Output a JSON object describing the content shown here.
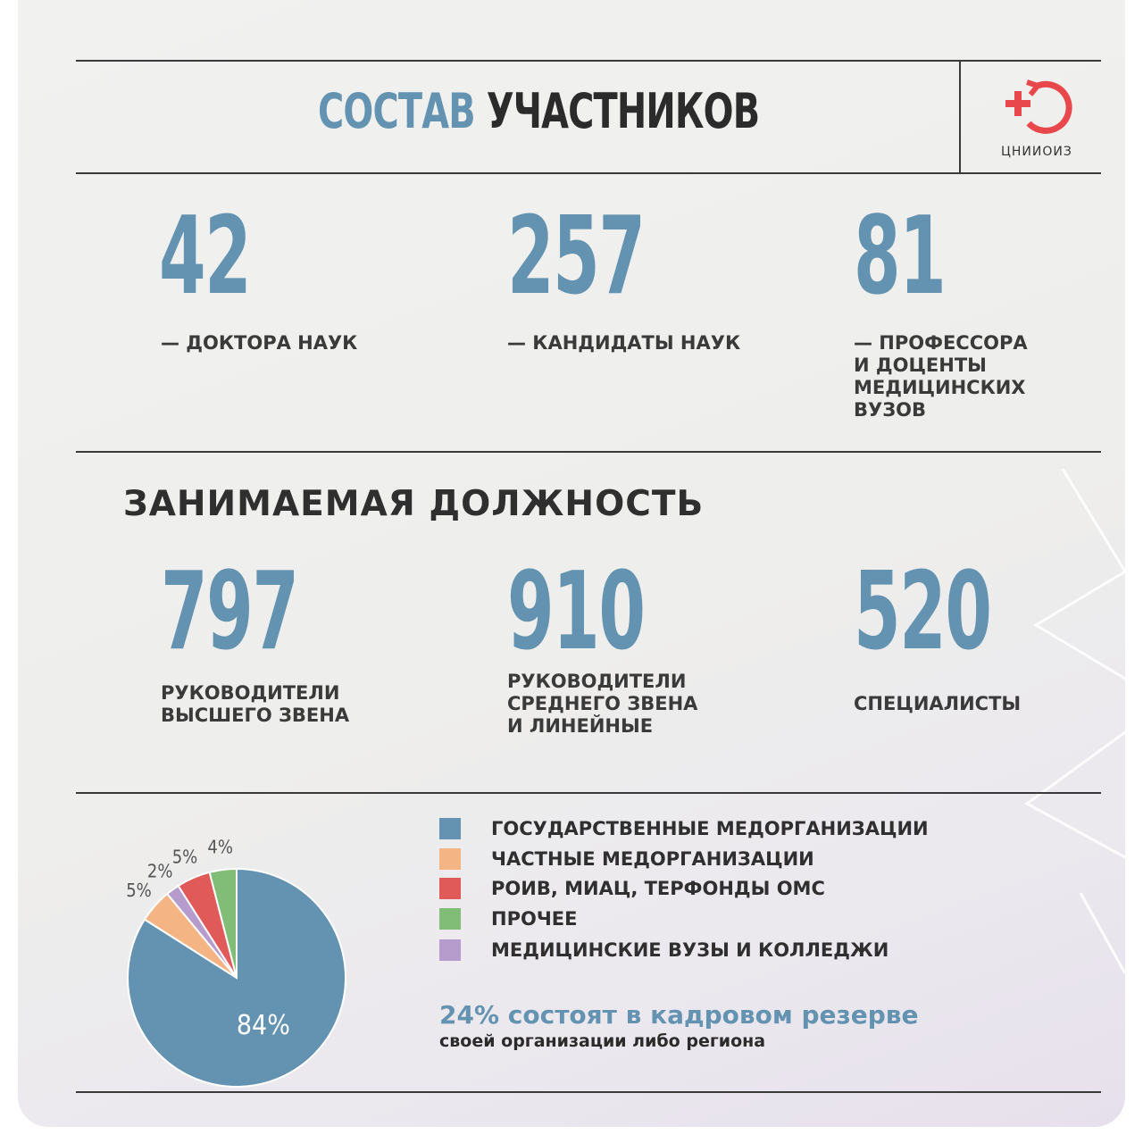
{
  "header": {
    "title_part1": "СОСТАВ",
    "title_part2": "УЧАСТНИКОВ",
    "logo_text": "ЦНИИОИЗ",
    "logo_icon": "cross-arrow-circle-icon"
  },
  "stats_degrees": [
    {
      "value": "42",
      "label": "— ДОКТОРА НАУК"
    },
    {
      "value": "257",
      "label": "— КАНДИДАТЫ НАУК"
    },
    {
      "value": "81",
      "label": "— ПРОФЕССОРА\nИ ДОЦЕНТЫ\nМЕДИЦИНСКИХ\nВУЗОВ"
    }
  ],
  "position_section": {
    "title": "ЗАНИМАЕМАЯ ДОЛЖНОСТЬ",
    "stats": [
      {
        "value": "797",
        "label": "РУКОВОДИТЕЛИ\nВЫСШЕГО ЗВЕНА"
      },
      {
        "value": "910",
        "label": "РУКОВОДИТЕЛИ\nСРЕДНЕГО ЗВЕНА\nИ ЛИНЕЙНЫЕ"
      },
      {
        "value": "520",
        "label": "СПЕЦИАЛИСТЫ"
      }
    ]
  },
  "reserve": {
    "headline": "24% состоят в кадровом резерве",
    "subline": "своей организации либо региона"
  },
  "colors": {
    "accent": "#6393b1",
    "text_dark": "#2f2f2f"
  },
  "chart_data": {
    "type": "pie",
    "slices": [
      {
        "label": "ГОСУДАРСТВЕННЫЕ МЕДОРГАНИЗАЦИИ",
        "value": 84,
        "display": "84%",
        "color": "#6393b1"
      },
      {
        "label": "ЧАСТНЫЕ МЕДОРГАНИЗАЦИИ",
        "value": 5,
        "display": "5%",
        "color": "#f4b483"
      },
      {
        "label": "МЕДИЦИНСКИЕ ВУЗЫ И КОЛЛЕДЖИ",
        "value": 2,
        "display": "2%",
        "color": "#b59ccc"
      },
      {
        "label": "РОИВ, МИАЦ, ТЕРФОНДЫ ОМС",
        "value": 5,
        "display": "5%",
        "color": "#e05a5a"
      },
      {
        "label": "ПРОЧЕЕ",
        "value": 4,
        "display": "4%",
        "color": "#82bd77"
      }
    ],
    "legend_order": [
      0,
      1,
      3,
      4,
      2
    ],
    "legend_position": "right"
  }
}
